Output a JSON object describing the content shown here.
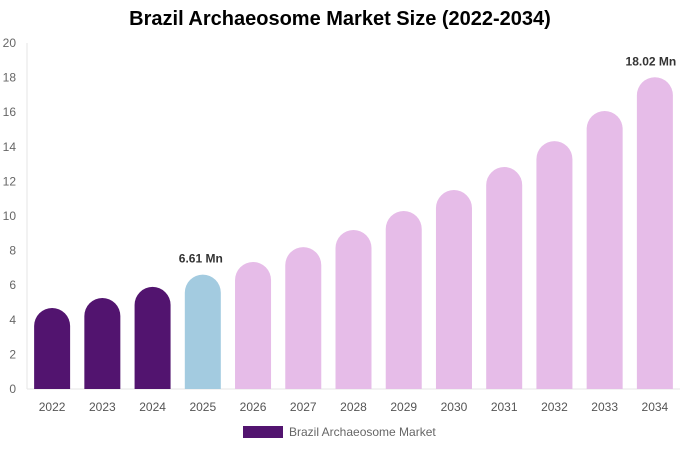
{
  "chart_data": {
    "type": "bar",
    "title": "Brazil Archaeosome Market Size (2022-2034)",
    "categories": [
      "2022",
      "2023",
      "2024",
      "2025",
      "2026",
      "2027",
      "2028",
      "2029",
      "2030",
      "2031",
      "2032",
      "2033",
      "2034"
    ],
    "series": [
      {
        "name": "Brazil Archaeosome Market",
        "values": [
          4.68,
          5.26,
          5.9,
          6.61,
          7.34,
          8.2,
          9.19,
          10.29,
          11.5,
          12.83,
          14.33,
          16.07,
          18.02
        ]
      }
    ],
    "data_labels": [
      {
        "category": "2025",
        "text": "6.61 Mn"
      },
      {
        "category": "2034",
        "text": "18.02 Mn"
      }
    ],
    "ylim": [
      0,
      20
    ],
    "yticks": [
      "0",
      "2",
      "4",
      "6",
      "8",
      "10",
      "12",
      "14",
      "16",
      "18",
      "20"
    ],
    "xlabel": "",
    "ylabel": "",
    "grid": false,
    "legend_position": "bottom",
    "colors": {
      "historical": "#52146f",
      "current": "#a3cbe0",
      "forecast": "#e6bce8"
    },
    "color_by_category": [
      "historical",
      "historical",
      "historical",
      "current",
      "forecast",
      "forecast",
      "forecast",
      "forecast",
      "forecast",
      "forecast",
      "forecast",
      "forecast",
      "forecast"
    ]
  }
}
